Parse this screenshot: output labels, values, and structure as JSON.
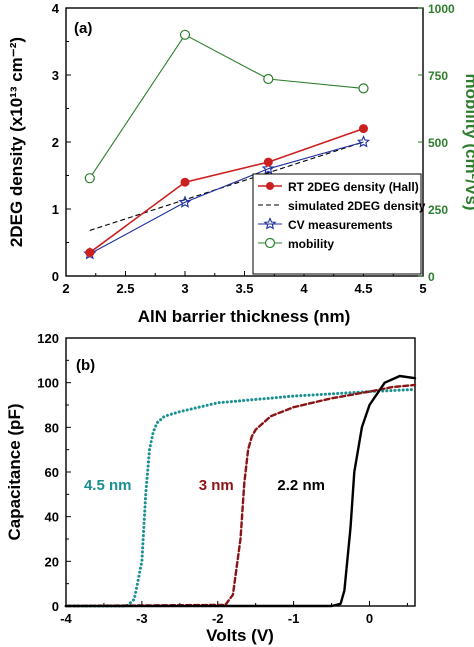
{
  "chart_data": [
    {
      "type": "line",
      "panel_label": "(a)",
      "xlabel": "AlN barrier thickness (nm)",
      "ylabel": "2DEG density (x10¹³ cm⁻²)",
      "y2label": "mobility (cm²/Vs)",
      "xlim": [
        2,
        5
      ],
      "ylim": [
        0,
        4
      ],
      "y2lim": [
        0,
        1000
      ],
      "xticks": [
        "2",
        "2.5",
        "3",
        "3.5",
        "4",
        "4.5",
        "5"
      ],
      "yticks": [
        "0",
        "1",
        "2",
        "3",
        "4"
      ],
      "y2ticks": [
        "0",
        "250",
        "500",
        "750",
        "1000"
      ],
      "legend_position": "lower-right",
      "colors": {
        "hall": "#cc1f1f",
        "sim": "#000000",
        "cv": "#1f2f9f",
        "mob": "#2e7d2e"
      },
      "series": [
        {
          "name": "RT 2DEG density (Hall)",
          "axis": "left",
          "x": [
            2.2,
            3.0,
            3.7,
            4.5
          ],
          "y": [
            0.35,
            1.4,
            1.7,
            2.2
          ]
        },
        {
          "name": "simulated 2DEG density",
          "axis": "left",
          "x": [
            2.2,
            4.5
          ],
          "y": [
            0.68,
            2.0
          ]
        },
        {
          "name": "CV measurements",
          "axis": "left",
          "x": [
            2.2,
            3.0,
            3.7,
            4.5
          ],
          "y": [
            0.33,
            1.1,
            1.6,
            2.0
          ]
        },
        {
          "name": "mobility",
          "axis": "right",
          "x": [
            2.2,
            3.0,
            3.7,
            4.5
          ],
          "y": [
            365,
            900,
            735,
            700
          ]
        }
      ]
    },
    {
      "type": "line",
      "panel_label": "(b)",
      "xlabel": "Volts (V)",
      "ylabel": "Capacitance (pF)",
      "xlim": [
        -4,
        0.6
      ],
      "ylim": [
        0,
        120
      ],
      "xticks": [
        "-4",
        "-3",
        "-2",
        "-1",
        "0"
      ],
      "yticks": [
        "0",
        "20",
        "40",
        "60",
        "80",
        "100",
        "120"
      ],
      "colors": {
        "t45": "#1a9090",
        "t3": "#8b1515",
        "t22": "#000000"
      },
      "series": [
        {
          "label": "4.5 nm",
          "x": [
            -4,
            -3.2,
            -3.1,
            -3.0,
            -2.95,
            -2.9,
            -2.85,
            -2.8,
            -2.7,
            -2.5,
            -2.0,
            -1.0,
            0,
            0.6
          ],
          "y": [
            0,
            0,
            3,
            20,
            50,
            70,
            78,
            82,
            85,
            87,
            91,
            94,
            96,
            97
          ]
        },
        {
          "label": "3 nm",
          "x": [
            -4,
            -1.9,
            -1.8,
            -1.7,
            -1.65,
            -1.6,
            -1.55,
            -1.5,
            -1.3,
            -1.0,
            -0.5,
            0,
            0.3,
            0.6
          ],
          "y": [
            0,
            0.5,
            5,
            30,
            55,
            70,
            76,
            79,
            85,
            89,
            93,
            96,
            98,
            99
          ]
        },
        {
          "label": "2.2 nm",
          "x": [
            -4,
            -0.5,
            -0.38,
            -0.33,
            -0.25,
            -0.2,
            -0.1,
            0,
            0.2,
            0.4,
            0.6
          ],
          "y": [
            0,
            0,
            1,
            7,
            35,
            60,
            80,
            90,
            100,
            103,
            102
          ]
        }
      ]
    }
  ]
}
